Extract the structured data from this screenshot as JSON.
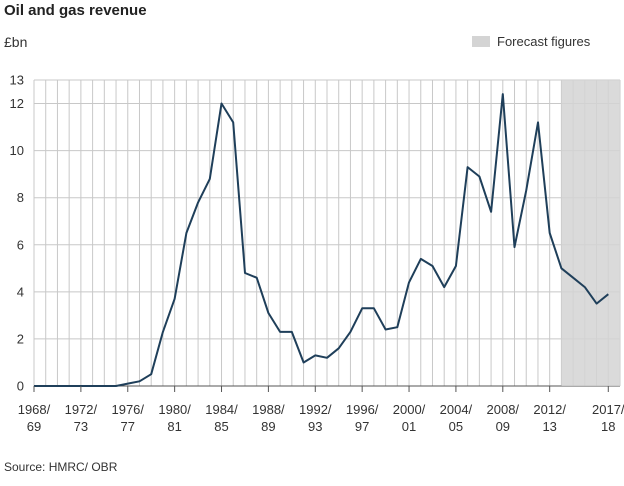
{
  "title": "Oil and gas revenue",
  "unit_label": "£bn",
  "legend": {
    "label": "Forecast figures",
    "color": "#d4d4d4"
  },
  "source": "Source: HMRC/ OBR",
  "colors": {
    "line": "#1f3f5a",
    "grid": "#c8c8c8",
    "forecast": "#d4d4d4"
  },
  "chart_data": {
    "type": "line",
    "title": "Oil and gas revenue",
    "ylabel": "£bn",
    "xlabel": "",
    "ylim": [
      0,
      13
    ],
    "yticks": [
      "0",
      "2",
      "4",
      "6",
      "8",
      "10",
      "12",
      "13"
    ],
    "x_tick_labels": [
      [
        "1968/",
        "69"
      ],
      [
        "1972/",
        "73"
      ],
      [
        "1976/",
        "77"
      ],
      [
        "1980/",
        "81"
      ],
      [
        "1984/",
        "85"
      ],
      [
        "1988/",
        "89"
      ],
      [
        "1992/",
        "93"
      ],
      [
        "1996/",
        "97"
      ],
      [
        "2000/",
        "01"
      ],
      [
        "2004/",
        "05"
      ],
      [
        "2008/",
        "09"
      ],
      [
        "2012/",
        "13"
      ],
      [
        "2017/",
        "18"
      ]
    ],
    "x": [
      "1968/69",
      "1969/70",
      "1970/71",
      "1971/72",
      "1972/73",
      "1973/74",
      "1974/75",
      "1975/76",
      "1976/77",
      "1977/78",
      "1978/79",
      "1979/80",
      "1980/81",
      "1981/82",
      "1982/83",
      "1983/84",
      "1984/85",
      "1985/86",
      "1986/87",
      "1987/88",
      "1988/89",
      "1989/90",
      "1990/91",
      "1991/92",
      "1992/93",
      "1993/94",
      "1994/95",
      "1995/96",
      "1996/97",
      "1997/98",
      "1998/99",
      "1999/00",
      "2000/01",
      "2001/02",
      "2002/03",
      "2003/04",
      "2004/05",
      "2005/06",
      "2006/07",
      "2007/08",
      "2008/09",
      "2009/10",
      "2010/11",
      "2011/12",
      "2012/13",
      "2013/14",
      "2014/15",
      "2015/16",
      "2016/17",
      "2017/18"
    ],
    "series": [
      {
        "values": [
          0.0,
          0.0,
          0.0,
          0.0,
          0.0,
          0.0,
          0.0,
          0.0,
          0.1,
          0.2,
          0.5,
          2.3,
          3.7,
          6.5,
          7.8,
          8.8,
          12.0,
          11.2,
          4.8,
          4.6,
          3.1,
          2.3,
          2.3,
          1.0,
          1.3,
          1.2,
          1.6,
          2.3,
          3.3,
          3.3,
          2.4,
          2.5,
          4.4,
          5.4,
          5.1,
          4.2,
          5.1,
          9.3,
          8.9,
          7.4,
          12.4,
          5.9,
          8.3,
          11.2,
          6.5,
          5.0,
          4.6,
          4.2,
          3.5,
          3.9
        ]
      }
    ],
    "forecast_from": "2013/14",
    "grid": true
  }
}
